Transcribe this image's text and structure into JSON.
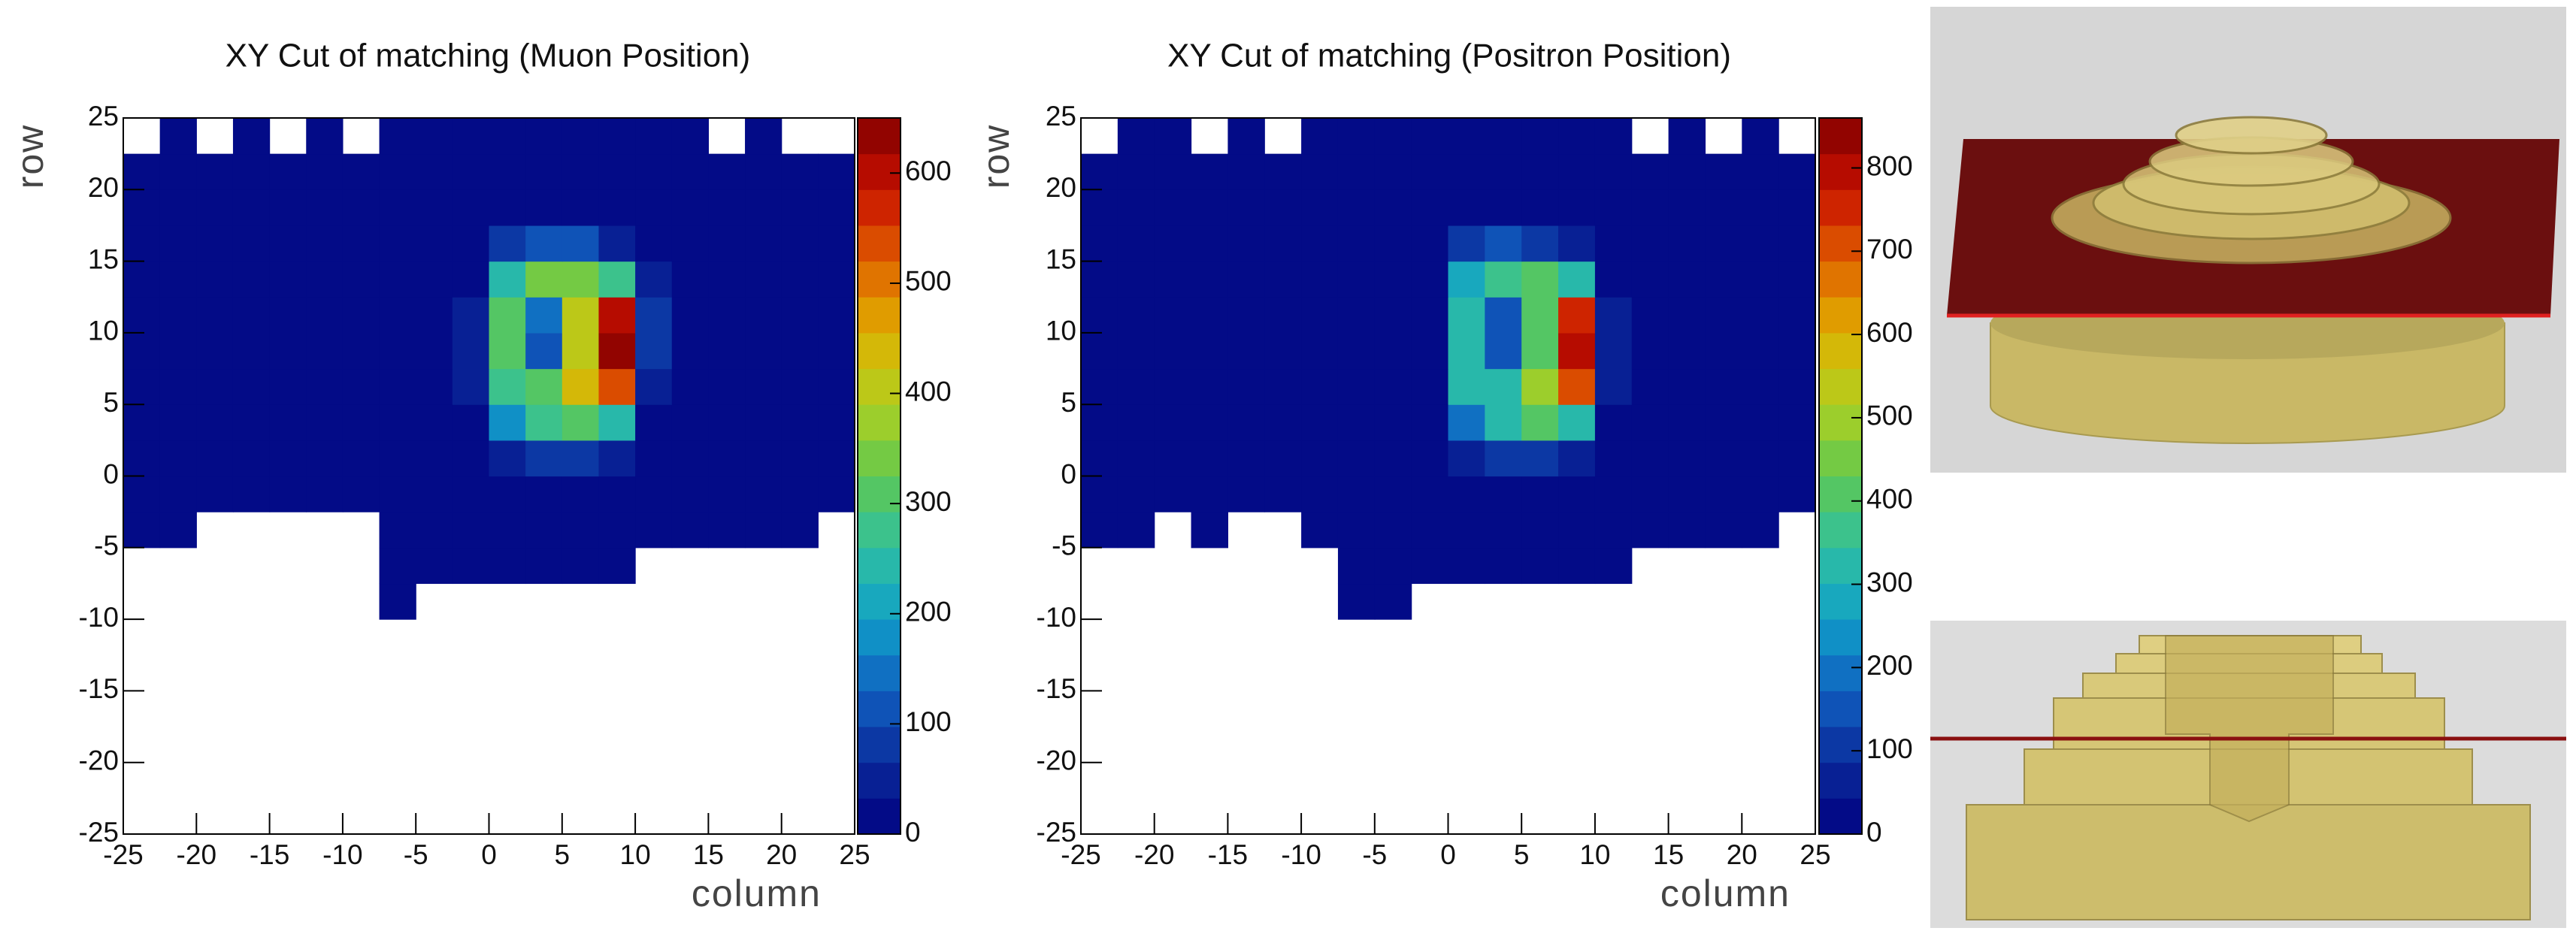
{
  "chart_data": [
    {
      "type": "heatmap",
      "title": "XY Cut of matching (Muon Position)",
      "xlabel": "column",
      "ylabel": "row",
      "xlim": [
        -25,
        25
      ],
      "ylim": [
        -25,
        25
      ],
      "xticks": [
        -25,
        -20,
        -15,
        -10,
        -5,
        0,
        5,
        10,
        15,
        20,
        25
      ],
      "yticks": [
        -25,
        -20,
        -15,
        -10,
        -5,
        0,
        5,
        10,
        15,
        20,
        25
      ],
      "zlim": [
        0,
        650
      ],
      "zticks": [
        0,
        100,
        200,
        300,
        400,
        500,
        600
      ],
      "palette": [
        "#000080",
        "#0a2a9a",
        "#1060c0",
        "#10a0c8",
        "#30c0a0",
        "#60c850",
        "#b0d020",
        "#e0b000",
        "#e06000",
        "#c81000",
        "#800000"
      ],
      "xbins": [
        -25,
        -22.5,
        -20,
        -17.5,
        -15,
        -12.5,
        -10,
        -7.5,
        -5,
        -2.5,
        0,
        2.5,
        5,
        7.5,
        10,
        12.5,
        15,
        17.5,
        20,
        22.5,
        25
      ],
      "ybins": [
        -10,
        -7.5,
        -5,
        -2.5,
        0,
        2.5,
        5,
        7.5,
        10,
        12.5,
        15,
        17.5,
        20,
        22.5,
        25
      ],
      "z": [
        [
          0,
          0,
          0,
          0,
          0,
          0,
          0,
          1,
          0,
          0,
          0,
          0,
          0,
          0,
          0,
          0,
          0,
          0,
          0,
          0
        ],
        [
          0,
          0,
          0,
          0,
          0,
          0,
          0,
          1,
          1,
          1,
          1,
          1,
          1,
          1,
          0,
          0,
          0,
          0,
          0,
          0
        ],
        [
          1,
          1,
          0,
          0,
          0,
          0,
          0,
          1,
          1,
          1,
          1,
          1,
          1,
          1,
          1,
          1,
          1,
          1,
          1,
          0
        ],
        [
          1,
          1,
          1,
          1,
          1,
          1,
          2,
          3,
          5,
          5,
          5,
          5,
          5,
          5,
          5,
          5,
          5,
          4,
          3,
          1
        ],
        [
          1,
          1,
          1,
          1,
          1,
          1,
          2,
          5,
          10,
          20,
          60,
          80,
          80,
          40,
          15,
          10,
          8,
          6,
          4,
          1
        ],
        [
          1,
          1,
          1,
          1,
          1,
          1,
          2,
          6,
          15,
          30,
          180,
          280,
          320,
          250,
          30,
          12,
          8,
          6,
          4,
          1
        ],
        [
          1,
          1,
          1,
          1,
          1,
          1,
          2,
          6,
          20,
          40,
          280,
          300,
          450,
          550,
          60,
          12,
          8,
          6,
          4,
          1
        ],
        [
          1,
          1,
          1,
          1,
          1,
          1,
          2,
          6,
          20,
          40,
          300,
          120,
          400,
          620,
          80,
          12,
          8,
          6,
          4,
          1
        ],
        [
          1,
          1,
          1,
          1,
          1,
          1,
          2,
          6,
          20,
          40,
          300,
          150,
          400,
          600,
          80,
          12,
          8,
          6,
          4,
          1
        ],
        [
          1,
          1,
          1,
          1,
          1,
          1,
          2,
          6,
          15,
          30,
          250,
          330,
          350,
          280,
          40,
          12,
          8,
          6,
          4,
          1
        ],
        [
          1,
          1,
          1,
          1,
          1,
          1,
          2,
          5,
          10,
          15,
          80,
          120,
          100,
          40,
          15,
          10,
          8,
          6,
          4,
          1
        ],
        [
          1,
          1,
          1,
          1,
          1,
          1,
          2,
          4,
          6,
          8,
          10,
          10,
          10,
          9,
          8,
          8,
          6,
          5,
          3,
          1
        ],
        [
          1,
          1,
          1,
          1,
          1,
          1,
          1,
          2,
          3,
          4,
          4,
          4,
          4,
          4,
          4,
          4,
          3,
          3,
          2,
          1
        ],
        [
          0,
          1,
          0,
          1,
          0,
          1,
          0,
          1,
          1,
          1,
          1,
          1,
          1,
          1,
          1,
          1,
          0,
          1,
          0,
          0
        ]
      ]
    },
    {
      "type": "heatmap",
      "title": "XY Cut of matching (Positron Position)",
      "xlabel": "column",
      "ylabel": "row",
      "xlim": [
        -25,
        25
      ],
      "ylim": [
        -25,
        25
      ],
      "xticks": [
        -25,
        -20,
        -15,
        -10,
        -5,
        0,
        5,
        10,
        15,
        20,
        25
      ],
      "yticks": [
        -25,
        -20,
        -15,
        -10,
        -5,
        0,
        5,
        10,
        15,
        20,
        25
      ],
      "zlim": [
        0,
        860
      ],
      "zticks": [
        0,
        100,
        200,
        300,
        400,
        500,
        600,
        700,
        800
      ],
      "palette": [
        "#000080",
        "#0a2a9a",
        "#1060c0",
        "#10a0c8",
        "#30c0a0",
        "#60c850",
        "#b0d020",
        "#e0b000",
        "#e06000",
        "#c81000",
        "#800000"
      ],
      "xbins": [
        -25,
        -22.5,
        -20,
        -17.5,
        -15,
        -12.5,
        -10,
        -7.5,
        -5,
        -2.5,
        0,
        2.5,
        5,
        7.5,
        10,
        12.5,
        15,
        17.5,
        20,
        22.5,
        25
      ],
      "ybins": [
        -10,
        -7.5,
        -5,
        -2.5,
        0,
        2.5,
        5,
        7.5,
        10,
        12.5,
        15,
        17.5,
        20,
        22.5,
        25
      ],
      "z": [
        [
          0,
          0,
          0,
          0,
          0,
          0,
          0,
          1,
          1,
          0,
          0,
          0,
          0,
          0,
          0,
          0,
          0,
          0,
          0,
          0
        ],
        [
          0,
          0,
          0,
          0,
          0,
          0,
          0,
          1,
          1,
          1,
          1,
          1,
          1,
          1,
          1,
          0,
          0,
          0,
          0,
          0
        ],
        [
          1,
          1,
          0,
          1,
          0,
          0,
          1,
          1,
          1,
          1,
          1,
          1,
          1,
          1,
          1,
          1,
          1,
          1,
          1,
          0
        ],
        [
          1,
          1,
          1,
          1,
          1,
          1,
          1,
          3,
          5,
          5,
          5,
          5,
          5,
          5,
          5,
          5,
          5,
          4,
          3,
          1
        ],
        [
          1,
          1,
          1,
          1,
          1,
          1,
          2,
          5,
          10,
          20,
          70,
          110,
          110,
          50,
          15,
          10,
          8,
          6,
          4,
          1
        ],
        [
          1,
          1,
          1,
          1,
          1,
          1,
          2,
          6,
          15,
          30,
          200,
          330,
          400,
          320,
          30,
          12,
          8,
          6,
          4,
          1
        ],
        [
          1,
          1,
          1,
          1,
          1,
          1,
          2,
          6,
          20,
          40,
          320,
          330,
          480,
          700,
          60,
          12,
          8,
          6,
          4,
          1
        ],
        [
          1,
          1,
          1,
          1,
          1,
          1,
          2,
          6,
          20,
          40,
          330,
          130,
          420,
          780,
          70,
          12,
          8,
          6,
          4,
          1
        ],
        [
          1,
          1,
          1,
          1,
          1,
          1,
          2,
          6,
          20,
          40,
          330,
          160,
          420,
          760,
          70,
          12,
          8,
          6,
          4,
          1
        ],
        [
          1,
          1,
          1,
          1,
          1,
          1,
          2,
          6,
          15,
          30,
          280,
          380,
          400,
          330,
          40,
          12,
          8,
          6,
          4,
          1
        ],
        [
          1,
          1,
          1,
          1,
          1,
          1,
          2,
          5,
          10,
          15,
          90,
          140,
          120,
          45,
          15,
          10,
          8,
          6,
          4,
          1
        ],
        [
          1,
          1,
          1,
          1,
          1,
          1,
          2,
          4,
          6,
          8,
          10,
          10,
          10,
          9,
          8,
          8,
          6,
          5,
          3,
          1
        ],
        [
          1,
          1,
          1,
          1,
          1,
          1,
          1,
          2,
          3,
          4,
          4,
          4,
          4,
          4,
          4,
          4,
          3,
          3,
          2,
          1
        ],
        [
          0,
          1,
          1,
          0,
          1,
          0,
          1,
          1,
          1,
          1,
          1,
          1,
          1,
          1,
          1,
          0,
          1,
          0,
          1,
          0
        ]
      ]
    }
  ]
}
